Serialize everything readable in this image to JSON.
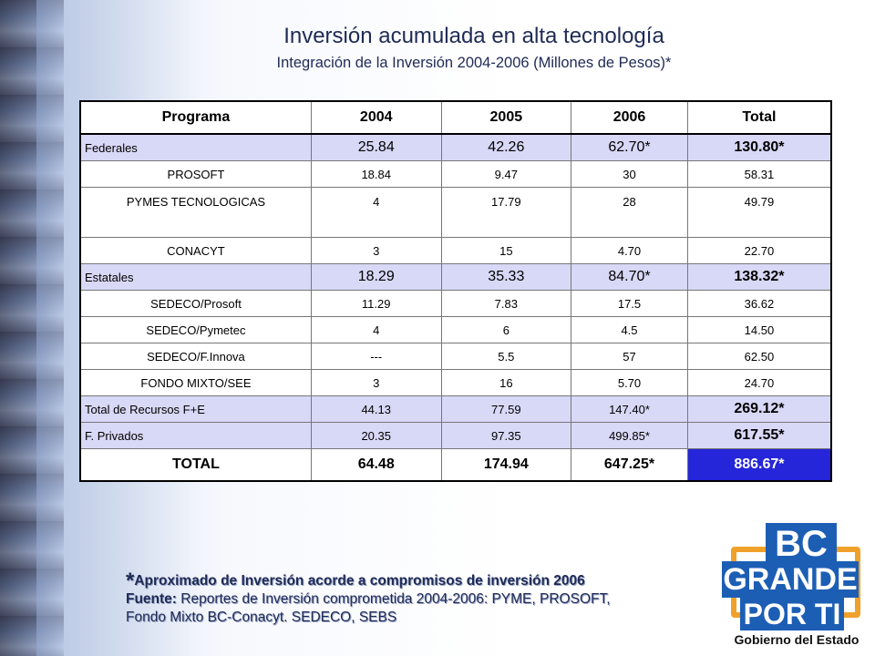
{
  "header": {
    "title": "Inversión acumulada en alta tecnología",
    "subtitle": "Integración de la Inversión 2004-2006 (Millones de Pesos)*"
  },
  "table": {
    "columns": [
      "Programa",
      "2004",
      "2005",
      "2006",
      "Total"
    ],
    "rows": [
      {
        "cells": [
          "Federales",
          "25.84",
          "42.26",
          "62.70*",
          "130.80*"
        ],
        "kind": "group"
      },
      {
        "cells": [
          "PROSOFT",
          "18.84",
          "9.47",
          "30",
          "58.31"
        ],
        "kind": "detail"
      },
      {
        "cells": [
          "PYMES TECNOLOGICAS",
          "4",
          "17.79",
          "28",
          "49.79"
        ],
        "kind": "detail"
      },
      {
        "cells": [
          "CONACYT",
          "3",
          "15",
          "4.70",
          "22.70"
        ],
        "kind": "detail"
      },
      {
        "cells": [
          "Estatales",
          "18.29",
          "35.33",
          "84.70*",
          "138.32*"
        ],
        "kind": "group"
      },
      {
        "cells": [
          "SEDECO/Prosoft",
          "11.29",
          "7.83",
          "17.5",
          "36.62"
        ],
        "kind": "detail"
      },
      {
        "cells": [
          "SEDECO/Pymetec",
          "4",
          "6",
          "4.5",
          "14.50"
        ],
        "kind": "detail"
      },
      {
        "cells": [
          "SEDECO/F.Innova",
          "---",
          "5.5",
          "57",
          "62.50"
        ],
        "kind": "detail"
      },
      {
        "cells": [
          "FONDO MIXTO/SEE",
          "3",
          "16",
          "5.70",
          "24.70"
        ],
        "kind": "detail"
      },
      {
        "cells": [
          "Total de Recursos F+E",
          "44.13",
          "77.59",
          "147.40*",
          "269.12*"
        ],
        "kind": "group"
      },
      {
        "cells": [
          "F. Privados",
          "20.35",
          "97.35",
          "499.85*",
          "617.55*"
        ],
        "kind": "group"
      },
      {
        "cells": [
          "TOTAL",
          "64.48",
          "174.94",
          "647.25*",
          "886.67*"
        ],
        "kind": "total"
      }
    ]
  },
  "notes": {
    "star": "*",
    "line1": "Aproximado de Inversión acorde a compromisos de inversión 2006",
    "source_label": "Fuente:",
    "source_text": " Reportes de Inversión comprometida 2004-2006: PYME, PROSOFT,",
    "line3": "Fondo Mixto BC-Conacyt. SEDECO, SEBS"
  },
  "logo": {
    "line1": "BC",
    "line2": "GRANDE",
    "line3": "POR TI",
    "caption": "Gobierno del Estado"
  },
  "colors": {
    "group_row": "#d8d8f7",
    "grand_total": "#2525d9",
    "title_text": "#1f2a55",
    "logo_blue": "#1d5eb5",
    "logo_orange": "#f0a12a"
  }
}
